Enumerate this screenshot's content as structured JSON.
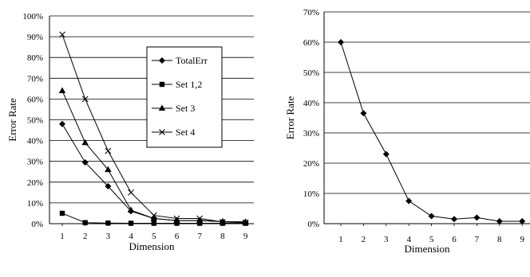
{
  "chart_data": [
    {
      "type": "line",
      "xlabel": "Dimension",
      "ylabel": "Error Rate",
      "x": [
        1,
        2,
        3,
        4,
        5,
        6,
        7,
        8,
        9
      ],
      "ylim": [
        0,
        100
      ],
      "yticks": [
        "0%",
        "10%",
        "20%",
        "30%",
        "40%",
        "50%",
        "60%",
        "70%",
        "80%",
        "90%",
        "100%"
      ],
      "grid": "horizontal",
      "legend_position": "top-right",
      "series": [
        {
          "name": "TotalErr",
          "marker": "diamond",
          "values": [
            48,
            29.5,
            18,
            6,
            2.5,
            1.5,
            1.5,
            1,
            0.8
          ]
        },
        {
          "name": "Set 1,2",
          "marker": "square",
          "values": [
            5,
            0.5,
            0.3,
            0.2,
            0.2,
            0.2,
            0.2,
            0.2,
            0.2
          ]
        },
        {
          "name": "Set 3",
          "marker": "triangle",
          "values": [
            64,
            39,
            26,
            6.5,
            2.5,
            1.5,
            1.5,
            1,
            0.8
          ]
        },
        {
          "name": "Set 4",
          "marker": "x",
          "values": [
            91,
            60,
            35,
            15,
            4,
            2.5,
            2.5,
            0.8,
            0.5
          ]
        }
      ]
    },
    {
      "type": "line",
      "xlabel": "Dimension",
      "ylabel": "Error Rate",
      "x": [
        1,
        2,
        3,
        4,
        5,
        6,
        7,
        8,
        9
      ],
      "ylim": [
        0,
        70
      ],
      "yticks": [
        "0%",
        "10%",
        "20%",
        "30%",
        "40%",
        "50%",
        "60%",
        "70%"
      ],
      "grid": "horizontal",
      "series": [
        {
          "marker": "diamond",
          "values": [
            60,
            36.5,
            23,
            7.5,
            2.5,
            1.5,
            2,
            0.8,
            0.8
          ]
        }
      ]
    }
  ]
}
